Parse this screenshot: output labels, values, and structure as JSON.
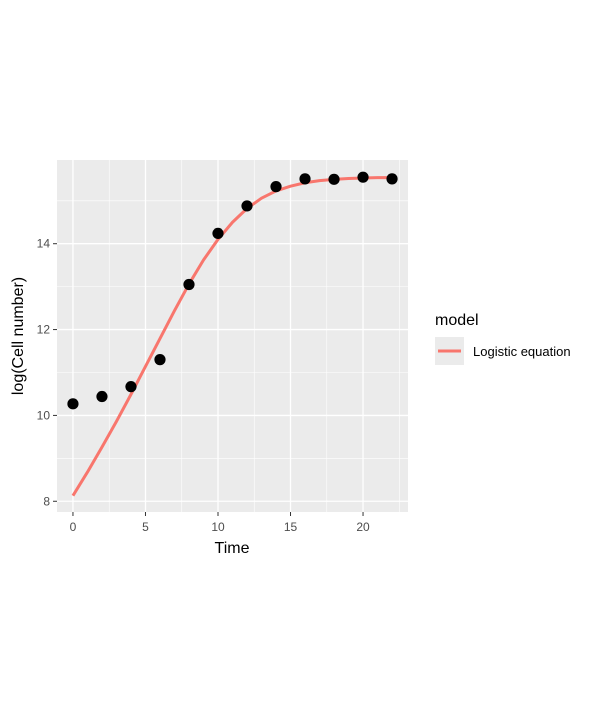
{
  "chart_data": {
    "type": "scatter",
    "xlabel": "Time",
    "ylabel": "log(Cell number)",
    "xlim": [
      -1.1,
      23.1
    ],
    "ylim": [
      7.75,
      15.95
    ],
    "x_ticks": [
      0,
      5,
      10,
      15,
      20
    ],
    "x_tick_labels": [
      "0",
      "5",
      "10",
      "15",
      "20"
    ],
    "y_ticks": [
      8,
      10,
      12,
      14
    ],
    "y_tick_labels": [
      "8",
      "10",
      "12",
      "14"
    ],
    "grid": true,
    "legend_position": "right",
    "legend": {
      "title": "model",
      "entries": [
        "Logistic equation"
      ]
    },
    "points": {
      "color": "#000000",
      "x": [
        0,
        2,
        4,
        6,
        8,
        10,
        12,
        14,
        16,
        18,
        20,
        22
      ],
      "y": [
        10.27,
        10.44,
        10.67,
        11.3,
        13.05,
        14.24,
        14.88,
        15.33,
        15.51,
        15.5,
        15.55,
        15.51
      ]
    },
    "series": [
      {
        "name": "Logistic equation",
        "color": "#f8766d",
        "type": "line",
        "x": [
          0,
          1,
          2,
          3,
          4,
          5,
          6,
          7,
          8,
          9,
          10,
          11,
          12,
          13,
          14,
          15,
          16,
          17,
          18,
          19,
          20,
          21,
          22
        ],
        "y": [
          8.13,
          8.68,
          9.26,
          9.86,
          10.49,
          11.14,
          11.79,
          12.44,
          13.06,
          13.62,
          14.1,
          14.5,
          14.82,
          15.06,
          15.23,
          15.34,
          15.42,
          15.47,
          15.5,
          15.52,
          15.53,
          15.54,
          15.54
        ]
      }
    ]
  }
}
